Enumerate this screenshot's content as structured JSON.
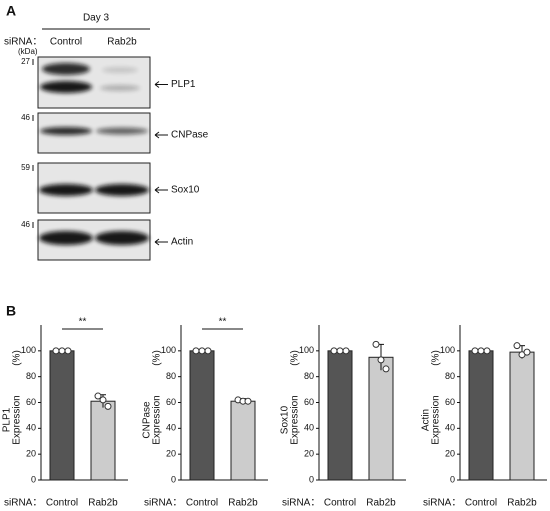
{
  "panel_a": {
    "label": "A",
    "condition": "Day 3",
    "siRNA_label": "siRNA：",
    "lanes": [
      "Control",
      "Rab2b"
    ],
    "unit": "(kDa)",
    "rows": [
      {
        "marker": "27",
        "label": "PLP1"
      },
      {
        "marker": "46",
        "label": "CNPase"
      },
      {
        "marker": "59",
        "label": "Sox10"
      },
      {
        "marker": "46",
        "label": "Actin"
      }
    ]
  },
  "panel_b": {
    "label": "B"
  },
  "chart_data": [
    {
      "type": "bar",
      "ylabel": [
        "PLP1",
        "Expression"
      ],
      "yunit": "(%)",
      "x_label": "siRNA：",
      "categories": [
        "Control",
        "Rab2b"
      ],
      "colors": [
        "#555555",
        "#cccccc"
      ],
      "values": [
        100,
        61
      ],
      "errors": [
        0,
        5
      ],
      "points": [
        [
          100,
          100,
          100
        ],
        [
          65,
          62,
          57
        ]
      ],
      "significance": "**",
      "ylim": [
        0,
        120
      ],
      "yticks": [
        0,
        20,
        40,
        60,
        80,
        100
      ]
    },
    {
      "type": "bar",
      "ylabel": [
        "CNPase",
        "Expression"
      ],
      "yunit": "(%)",
      "x_label": "siRNA：",
      "categories": [
        "Control",
        "Rab2b"
      ],
      "colors": [
        "#555555",
        "#cccccc"
      ],
      "values": [
        100,
        61
      ],
      "errors": [
        0,
        2
      ],
      "points": [
        [
          100,
          100,
          100
        ],
        [
          62,
          61,
          61
        ]
      ],
      "significance": "**",
      "ylim": [
        0,
        120
      ],
      "yticks": [
        0,
        20,
        40,
        60,
        80,
        100
      ]
    },
    {
      "type": "bar",
      "ylabel": [
        "Sox10",
        "Expression"
      ],
      "yunit": "(%)",
      "x_label": "siRNA：",
      "categories": [
        "Control",
        "Rab2b"
      ],
      "colors": [
        "#555555",
        "#cccccc"
      ],
      "values": [
        100,
        95
      ],
      "errors": [
        0,
        10
      ],
      "points": [
        [
          100,
          100,
          100
        ],
        [
          105,
          93,
          86
        ]
      ],
      "ylim": [
        0,
        120
      ],
      "yticks": [
        0,
        20,
        40,
        60,
        80,
        100
      ]
    },
    {
      "type": "bar",
      "ylabel": [
        "Actin",
        "Expression"
      ],
      "yunit": "(%)",
      "x_label": "siRNA：",
      "categories": [
        "Control",
        "Rab2b"
      ],
      "colors": [
        "#555555",
        "#cccccc"
      ],
      "values": [
        100,
        99
      ],
      "errors": [
        0,
        5
      ],
      "points": [
        [
          100,
          100,
          100
        ],
        [
          104,
          97,
          99
        ]
      ],
      "ylim": [
        0,
        120
      ],
      "yticks": [
        0,
        20,
        40,
        60,
        80,
        100
      ]
    }
  ]
}
